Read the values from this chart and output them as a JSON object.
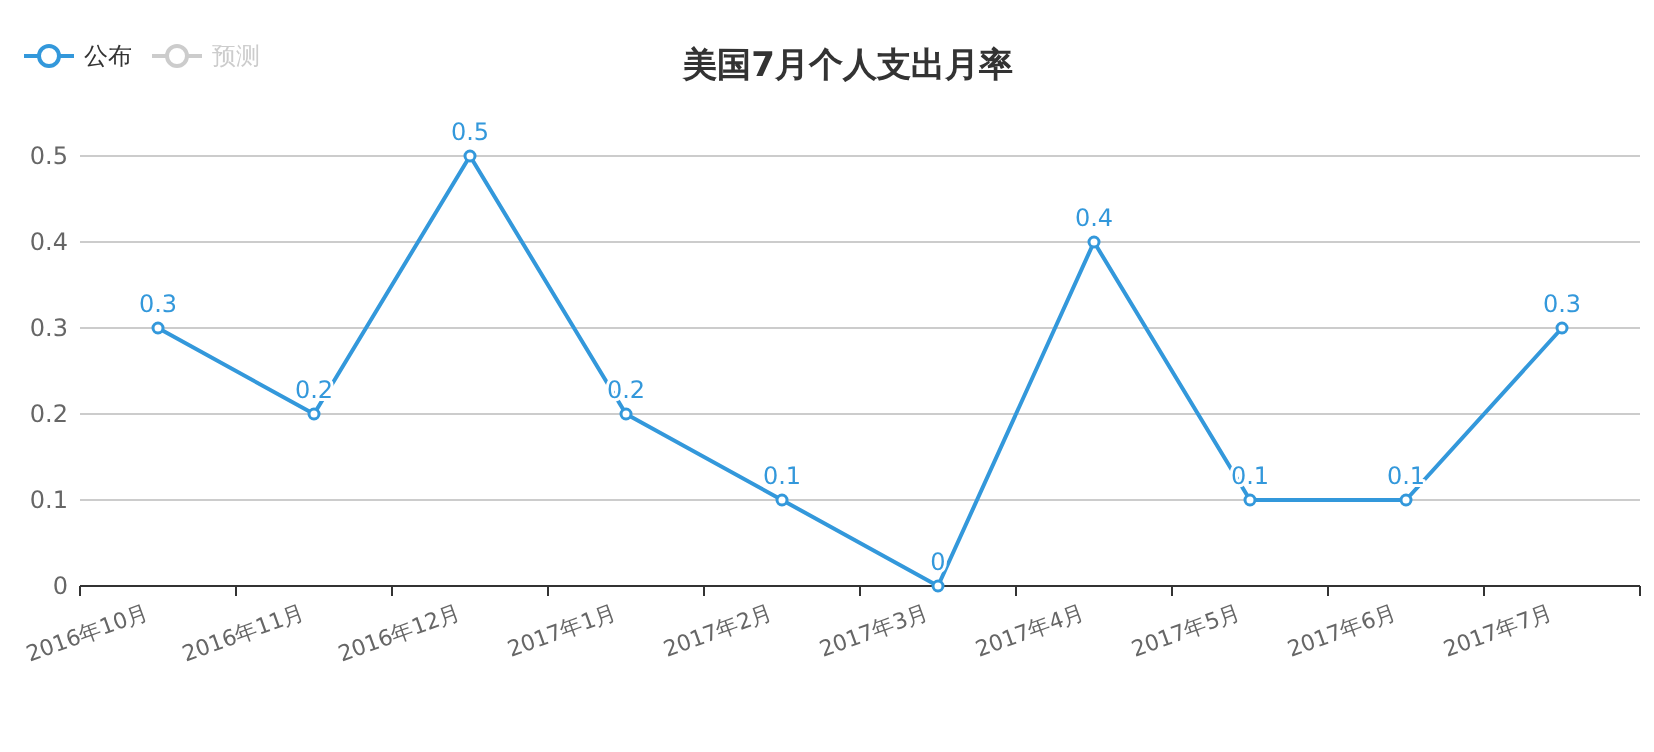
{
  "chart_data": {
    "type": "line",
    "title": "美国7月个人支出月率",
    "categories": [
      "2016年10月",
      "2016年11月",
      "2016年12月",
      "2017年1月",
      "2017年2月",
      "2017年3月",
      "2017年4月",
      "2017年5月",
      "2017年6月",
      "2017年7月"
    ],
    "series": [
      {
        "name": "公布",
        "color": "#3398db",
        "values": [
          0.3,
          0.2,
          0.5,
          0.2,
          0.1,
          0,
          0.4,
          0.1,
          0.1,
          0.3
        ]
      },
      {
        "name": "预测",
        "color": "#cccccc",
        "values": [
          null,
          null,
          null,
          null,
          null,
          null,
          null,
          null,
          null,
          null
        ]
      }
    ],
    "ylim": [
      0,
      0.5
    ],
    "yticks": [
      0,
      0.1,
      0.2,
      0.3,
      0.4,
      0.5
    ],
    "grid": "y",
    "legend": "top left",
    "data_labels": true,
    "marker": "circle",
    "line_style": "solid"
  }
}
